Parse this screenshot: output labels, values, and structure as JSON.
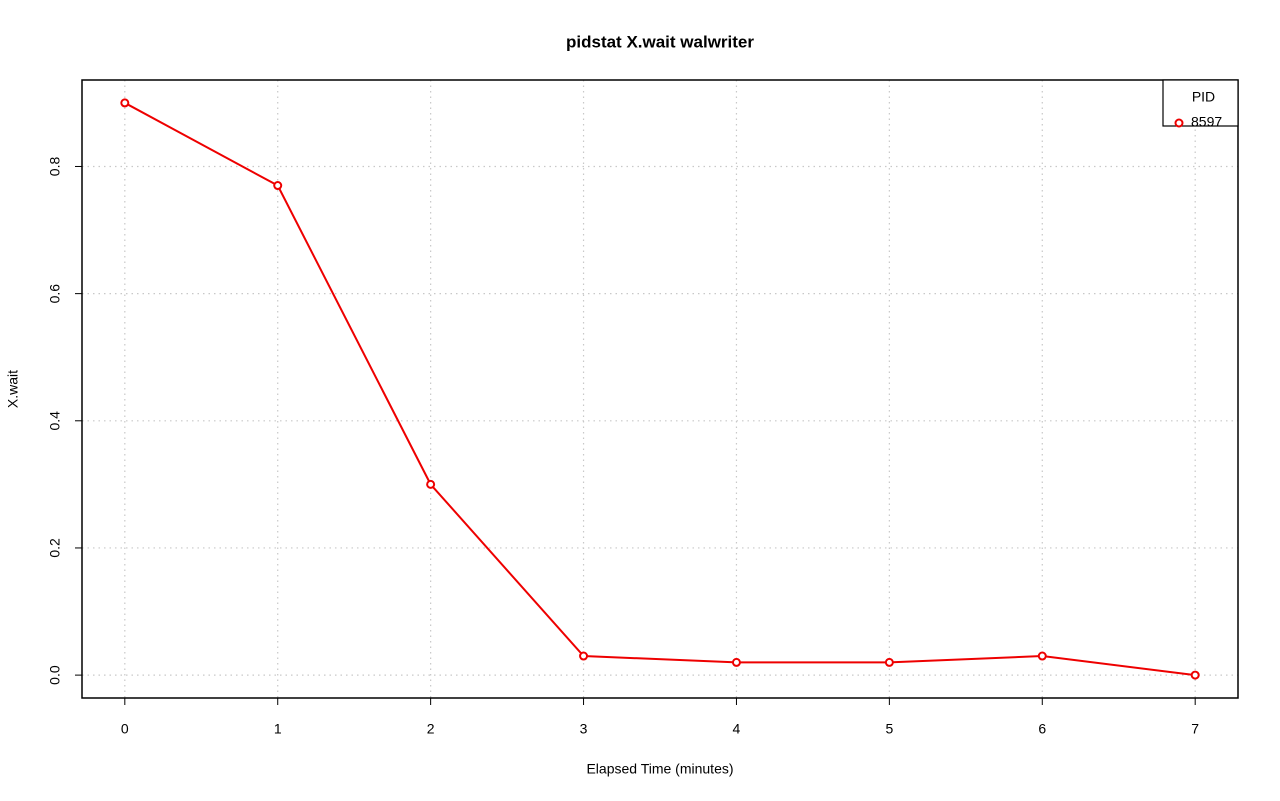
{
  "chart_data": {
    "type": "line",
    "title": "pidstat X.wait walwriter",
    "x_label": "Elapsed Time (minutes)",
    "y_label": "X.wait",
    "x": [
      0,
      1,
      2,
      3,
      4,
      5,
      6,
      7
    ],
    "series": [
      {
        "name": "8597",
        "color": "#ee0000",
        "values": [
          0.9,
          0.77,
          0.3,
          0.03,
          0.02,
          0.02,
          0.03,
          0.0
        ]
      }
    ],
    "legend_title": "PID",
    "legend": "top-right",
    "xlim": [
      -0.28,
      7.28
    ],
    "xticks": [
      0,
      1,
      2,
      3,
      4,
      5,
      6,
      7
    ],
    "ylim": [
      -0.036,
      0.936
    ],
    "yticks": [
      {
        "value": 0,
        "label": "0.0"
      },
      0.2,
      0.4,
      0.6,
      0.8
    ],
    "grid": true
  }
}
